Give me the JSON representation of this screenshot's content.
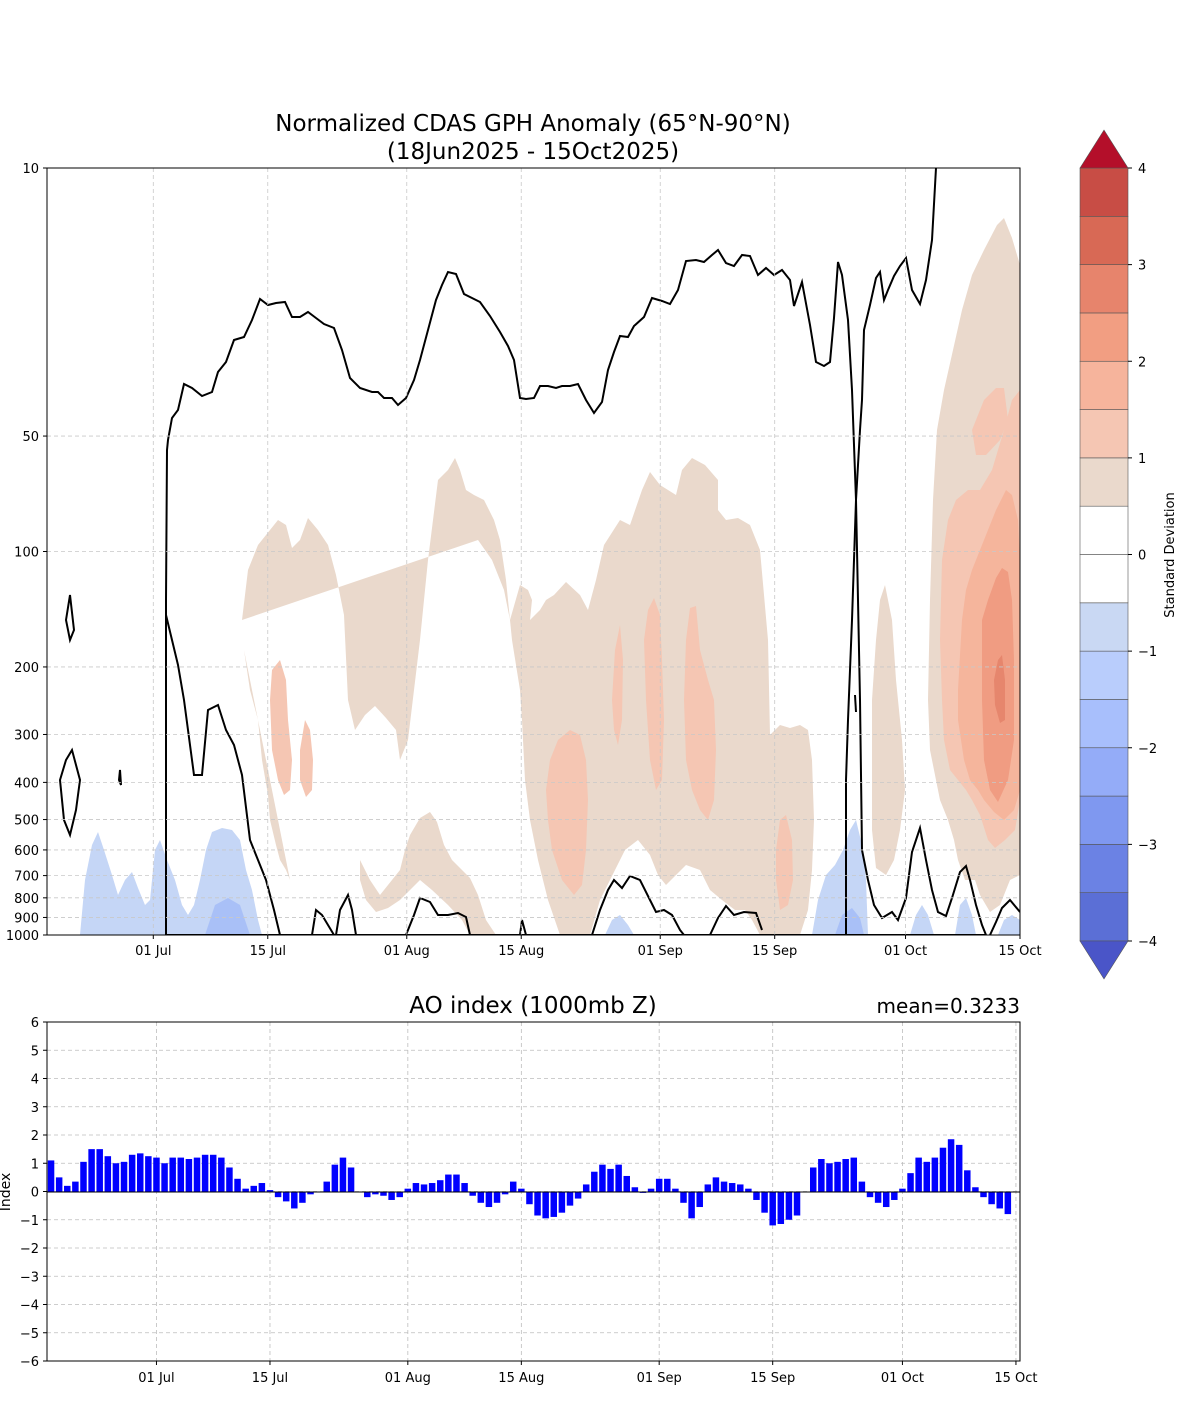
{
  "chart_data": [
    {
      "type": "heatmap",
      "title": "Normalized CDAS GPH Anomaly (65°N-90°N)",
      "subtitle": "(18Jun2025 - 15Oct2025)",
      "xlabel": "",
      "ylabel": "",
      "x_ticks": [
        "01 Jul",
        "15 Jul",
        "01 Aug",
        "15 Aug",
        "01 Sep",
        "15 Sep",
        "01 Oct",
        "15 Oct"
      ],
      "y_ticks": [
        "10",
        "50",
        "100",
        "200",
        "300",
        "400",
        "500",
        "600",
        "700",
        "800",
        "900",
        "1000"
      ],
      "y_scale": "log",
      "y_inverted": true,
      "y_unit_range": [
        10,
        1000
      ],
      "grid": true,
      "colorbar": {
        "label": "Standard Deviation",
        "ticks": [
          "4",
          "3",
          "2",
          "1",
          "0",
          "−1",
          "−2",
          "−3",
          "−4"
        ],
        "levels": [
          -4,
          -3.5,
          -3,
          -2.5,
          -2,
          -1.5,
          -1,
          -0.5,
          0,
          0.5,
          1,
          1.5,
          2,
          2.5,
          3,
          3.5,
          4
        ],
        "colors": [
          "#5b6fd6",
          "#6b82e4",
          "#7f98f0",
          "#94acf8",
          "#a8bffc",
          "#b9cdfc",
          "#c9d8f3",
          "#ffffff",
          "#ffffff",
          "#ead9cc",
          "#f5c6b3",
          "#f6b49c",
          "#f29e82",
          "#e7846c",
          "#d86955",
          "#c84d45"
        ],
        "extend_low": "#4a55c8",
        "extend_high": "#b40f2a"
      },
      "anomaly_regions": [
        {
          "level": "+0.5",
          "color": "#ead9cc",
          "description": "weak positive anomalies 50–800 mb through Jul–Sep; strong positive column mid-Oct"
        },
        {
          "level": "+1",
          "color": "#f5c6b3"
        },
        {
          "level": "+1.5",
          "color": "#f6b49c"
        },
        {
          "level": "+2",
          "color": "#f29e82"
        },
        {
          "level": "-0.5",
          "color": "#c9d8f3",
          "description": "weak negative anomalies near surface"
        }
      ]
    },
    {
      "type": "bar",
      "title": "AO index (1000mb Z)",
      "annotation": "mean=0.3233",
      "ylabel": "Index",
      "xlabel": "",
      "ylim": [
        -6,
        6
      ],
      "y_ticks": [
        "6",
        "5",
        "4",
        "3",
        "2",
        "1",
        "0",
        "−1",
        "−2",
        "−3",
        "−4",
        "−5",
        "−6"
      ],
      "x_ticks": [
        "01 Jul",
        "15 Jul",
        "01 Aug",
        "15 Aug",
        "01 Sep",
        "15 Sep",
        "01 Oct",
        "15 Oct"
      ],
      "x_start": "2025-06-18",
      "x_end": "2025-10-15",
      "bar_color": "#0000ff",
      "grid": true,
      "values": [
        1.1,
        0.5,
        0.2,
        0.35,
        1.05,
        1.5,
        1.5,
        1.25,
        1.0,
        1.05,
        1.3,
        1.35,
        1.25,
        1.2,
        1.0,
        1.2,
        1.2,
        1.15,
        1.2,
        1.3,
        1.3,
        1.2,
        0.85,
        0.45,
        0.1,
        0.2,
        0.3,
        0.05,
        -0.2,
        -0.35,
        -0.6,
        -0.4,
        -0.1,
        0.0,
        0.35,
        0.95,
        1.2,
        0.85,
        0.0,
        -0.2,
        -0.1,
        -0.15,
        -0.3,
        -0.2,
        0.1,
        0.3,
        0.25,
        0.3,
        0.4,
        0.6,
        0.6,
        0.3,
        -0.15,
        -0.4,
        -0.55,
        -0.4,
        -0.1,
        0.35,
        0.1,
        -0.45,
        -0.85,
        -0.95,
        -0.9,
        -0.75,
        -0.5,
        -0.25,
        0.25,
        0.7,
        0.95,
        0.8,
        0.95,
        0.55,
        0.15,
        -0.05,
        0.1,
        0.45,
        0.45,
        0.1,
        -0.4,
        -0.95,
        -0.55,
        0.25,
        0.5,
        0.35,
        0.3,
        0.25,
        0.1,
        -0.3,
        -0.75,
        -1.2,
        -1.15,
        -1.0,
        -0.85,
        0.0,
        0.85,
        1.15,
        1.0,
        1.05,
        1.15,
        1.2,
        0.35,
        -0.2,
        -0.4,
        -0.55,
        -0.3,
        0.1,
        0.65,
        1.2,
        1.05,
        1.2,
        1.55,
        1.85,
        1.65,
        0.75,
        0.15,
        -0.2,
        -0.45,
        -0.6,
        -0.8
      ]
    }
  ]
}
